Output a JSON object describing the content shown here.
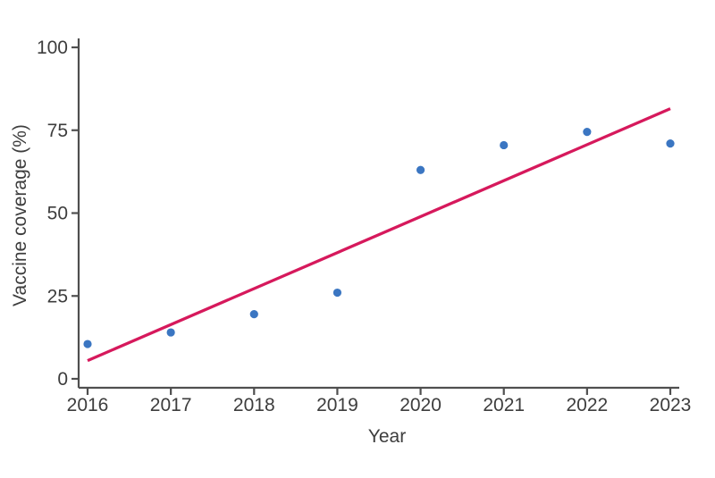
{
  "chart_data": {
    "type": "scatter",
    "title": "",
    "xlabel": "Year",
    "ylabel": "Vaccine coverage (%)",
    "x": [
      2016,
      2017,
      2018,
      2019,
      2020,
      2021,
      2022,
      2023
    ],
    "y": [
      10.5,
      14,
      19.5,
      26,
      63,
      70.5,
      74.5,
      71
    ],
    "trendline": {
      "x": [
        2016,
        2023
      ],
      "y": [
        5.5,
        81.5
      ]
    },
    "xlim": [
      2016,
      2023
    ],
    "ylim": [
      0,
      100
    ],
    "xticks": [
      2016,
      2017,
      2018,
      2019,
      2020,
      2021,
      2022,
      2023
    ],
    "yticks": [
      0,
      25,
      50,
      75,
      100
    ],
    "grid": false,
    "legend_position": "none",
    "colors": {
      "point": "#3b76c2",
      "trend": "#d6195c",
      "axis": "#4f4f4f",
      "text": "#3d3d3d"
    }
  }
}
